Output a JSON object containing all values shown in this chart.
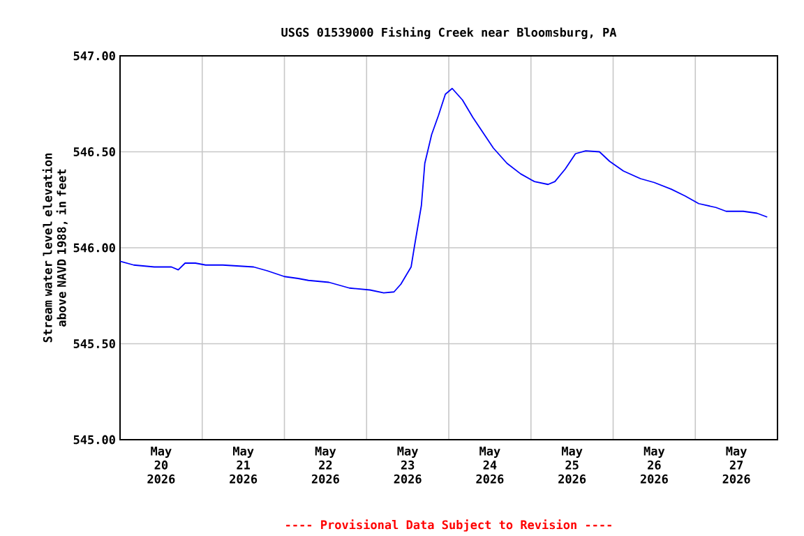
{
  "chart_data": {
    "type": "line",
    "title": "USGS 01539000 Fishing Creek near Bloomsburg, PA",
    "ylabel": "Stream water level elevation above NAVD 1988, in feet",
    "annotations": [
      "---- Provisional Data Subject to Revision ----"
    ],
    "series": [
      {
        "color": "#0000ff",
        "x": [
          "2026-05-20T00:00",
          "2026-05-20T04:00",
          "2026-05-20T10:00",
          "2026-05-20T15:00",
          "2026-05-20T17:00",
          "2026-05-20T19:00",
          "2026-05-20T22:00",
          "2026-05-21T01:00",
          "2026-05-21T06:00",
          "2026-05-21T15:00",
          "2026-05-21T19:00",
          "2026-05-22T00:00",
          "2026-05-22T04:00",
          "2026-05-22T07:00",
          "2026-05-22T13:00",
          "2026-05-22T19:00",
          "2026-05-23T01:00",
          "2026-05-23T05:00",
          "2026-05-23T08:00",
          "2026-05-23T10:00",
          "2026-05-23T13:00",
          "2026-05-23T14:00",
          "2026-05-23T16:00",
          "2026-05-23T17:00",
          "2026-05-23T19:00",
          "2026-05-23T21:00",
          "2026-05-23T23:00",
          "2026-05-24T01:00",
          "2026-05-24T02:00",
          "2026-05-24T04:00",
          "2026-05-24T07:00",
          "2026-05-24T10:00",
          "2026-05-24T13:00",
          "2026-05-24T17:00",
          "2026-05-24T21:00",
          "2026-05-25T01:00",
          "2026-05-25T05:00",
          "2026-05-25T07:00",
          "2026-05-25T10:00",
          "2026-05-25T13:00",
          "2026-05-25T16:00",
          "2026-05-25T20:00",
          "2026-05-25T23:00",
          "2026-05-26T03:00",
          "2026-05-26T08:00",
          "2026-05-26T12:00",
          "2026-05-26T17:00",
          "2026-05-26T21:00",
          "2026-05-27T01:00",
          "2026-05-27T06:00",
          "2026-05-27T09:00",
          "2026-05-27T14:00",
          "2026-05-27T18:00",
          "2026-05-27T21:00"
        ],
        "values": [
          545.93,
          545.91,
          545.9,
          545.9,
          545.885,
          545.92,
          545.92,
          545.91,
          545.91,
          545.9,
          545.88,
          545.85,
          545.84,
          545.83,
          545.82,
          545.79,
          545.78,
          545.765,
          545.77,
          545.81,
          545.9,
          546.01,
          546.22,
          546.44,
          546.59,
          546.69,
          546.8,
          546.83,
          546.81,
          546.77,
          546.68,
          546.6,
          546.52,
          546.44,
          546.385,
          546.345,
          546.33,
          546.345,
          546.41,
          546.49,
          546.505,
          546.5,
          546.45,
          546.4,
          546.36,
          546.34,
          546.305,
          546.27,
          546.23,
          546.21,
          546.19,
          546.19,
          546.18,
          546.16
        ]
      }
    ],
    "xlim": [
      "2026-05-20T00:00",
      "2026-05-28T00:00"
    ],
    "xticks": [
      {
        "value": "2026-05-21T00:00",
        "label": null
      },
      {
        "value": "2026-05-22T00:00",
        "label": null
      },
      {
        "value": "2026-05-23T00:00",
        "label": null
      },
      {
        "value": "2026-05-24T00:00",
        "label": null
      },
      {
        "value": "2026-05-25T00:00",
        "label": null
      },
      {
        "value": "2026-05-26T00:00",
        "label": null
      },
      {
        "value": "2026-05-27T00:00",
        "label": null
      },
      {
        "value": "2026-05-20T12:00",
        "label": "May 20 2026"
      },
      {
        "value": "2026-05-21T12:00",
        "label": "May 21 2026"
      },
      {
        "value": "2026-05-22T12:00",
        "label": "May 22 2026"
      },
      {
        "value": "2026-05-23T12:00",
        "label": "May 23 2026"
      },
      {
        "value": "2026-05-24T12:00",
        "label": "May 24 2026"
      },
      {
        "value": "2026-05-25T12:00",
        "label": "May 25 2026"
      },
      {
        "value": "2026-05-26T12:00",
        "label": "May 26 2026"
      },
      {
        "value": "2026-05-27T12:00",
        "label": "May 27 2026"
      }
    ],
    "ylim": [
      545,
      547
    ],
    "yticks": [
      {
        "value": 545,
        "label": "545.00"
      },
      {
        "value": 545.5,
        "label": "545.50"
      },
      {
        "value": 546,
        "label": "546.00"
      },
      {
        "value": 546.5,
        "label": "546.50"
      },
      {
        "value": 547,
        "label": "547.00"
      }
    ],
    "grid": true,
    "marker": "none",
    "line_style": "solid"
  }
}
